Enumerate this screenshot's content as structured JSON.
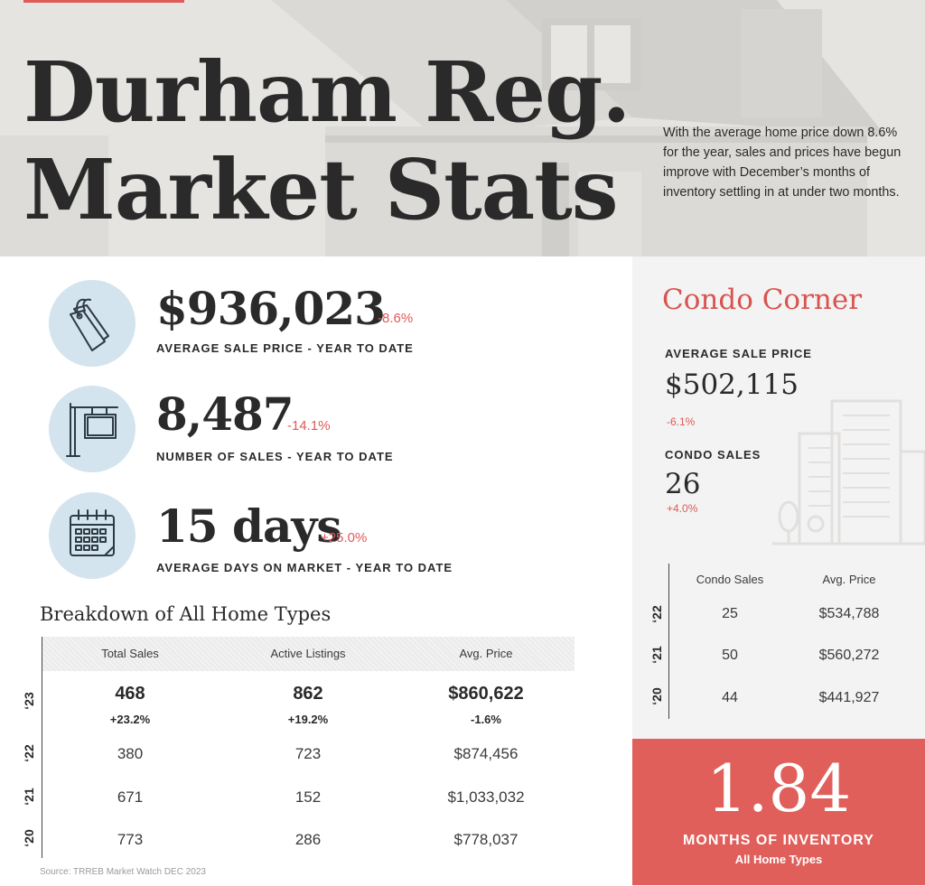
{
  "hero": {
    "title_line1": "Durham Reg.",
    "title_line2": "Market Stats",
    "blurb": "With the average home price down 8.6% for the year, sales and prices have begun improve with December’s months of inventory settling in at under two months."
  },
  "stats": [
    {
      "icon": "price-tag-icon",
      "value": "$936,023",
      "change": "-8.6%",
      "label": "AVERAGE SALE PRICE - YEAR TO DATE"
    },
    {
      "icon": "for-sale-sign-icon",
      "value": "8,487",
      "change": "-14.1%",
      "label": "NUMBER OF SALES - YEAR TO DATE"
    },
    {
      "icon": "calendar-icon",
      "value": "15 days",
      "change": "+25.0%",
      "label": "AVERAGE DAYS ON MARKET - YEAR TO DATE"
    }
  ],
  "breakdown": {
    "title": "Breakdown of All Home Types",
    "columns": [
      "Total Sales",
      "Active Listings",
      "Avg. Price"
    ],
    "rows": [
      {
        "year": "‘23",
        "values": [
          "468",
          "862",
          "$860,622"
        ],
        "changes": [
          "+23.2%",
          "+19.2%",
          "-1.6%"
        ]
      },
      {
        "year": "‘22",
        "values": [
          "380",
          "723",
          "$874,456"
        ]
      },
      {
        "year": "‘21",
        "values": [
          "671",
          "152",
          "$1,033,032"
        ]
      },
      {
        "year": "‘20",
        "values": [
          "773",
          "286",
          "$778,037"
        ]
      }
    ],
    "source": "Source: TRREB Market Watch DEC 2023"
  },
  "condo": {
    "title": "Condo Corner",
    "avg_price_label": "AVERAGE SALE PRICE",
    "avg_price_value": "$502,115",
    "avg_price_change": "-6.1%",
    "sales_label": "CONDO SALES",
    "sales_value": "26",
    "sales_change": "+4.0%",
    "table": {
      "columns": [
        "Condo Sales",
        "Avg. Price"
      ],
      "rows": [
        {
          "year": "‘22",
          "values": [
            "25",
            "$534,788"
          ]
        },
        {
          "year": "‘21",
          "values": [
            "50",
            "$560,272"
          ]
        },
        {
          "year": "‘20",
          "values": [
            "44",
            "$441,927"
          ]
        }
      ]
    }
  },
  "inventory": {
    "value": "1.84",
    "label": "MONTHS OF INVENTORY",
    "sublabel": "All Home Types"
  },
  "colors": {
    "accent": "#e05a57",
    "icon_circle": "#d3e4ee",
    "text": "#2a2a2a",
    "condo_panel": "#f3f3f3"
  }
}
